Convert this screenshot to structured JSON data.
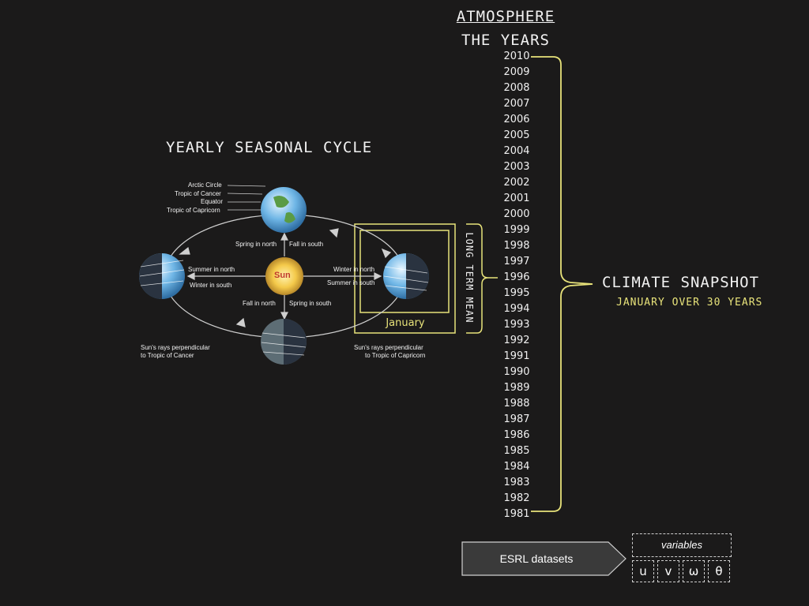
{
  "header": {
    "atmosphere": "ATMOSPHERE",
    "the_years": "THE YEARS"
  },
  "cycle": {
    "title": "YEARLY SEASONAL CYCLE",
    "labels": {
      "arctic_circle": "Arctic Circle",
      "tropic_cancer": "Tropic of Cancer",
      "equator": "Equator",
      "tropic_capricorn": "Tropic of Capricorn",
      "spring_north_top": "Spring in north",
      "fall_south_top": "Fall in south",
      "summer_north": "Summer in north",
      "winter_south": "Winter in south",
      "winter_north": "Winter in north",
      "summer_south": "Summer in south",
      "sun": "Sun",
      "fall_north_bottom": "Fall in north",
      "spring_south_bottom": "Spring in south",
      "rays_cancer_1": "Sun's rays perpendicular",
      "rays_cancer_2": "to Tropic of Cancer",
      "rays_capricorn_1": "Sun's rays perpendicular",
      "rays_capricorn_2": "to Tropic of Capricorn"
    },
    "january": "January",
    "long_term_mean": "LONG TERM MEAN"
  },
  "years": [
    "2010",
    "2009",
    "2008",
    "2007",
    "2006",
    "2005",
    "2004",
    "2003",
    "2002",
    "2001",
    "2000",
    "1999",
    "1998",
    "1997",
    "1996",
    "1995",
    "1994",
    "1993",
    "1992",
    "1991",
    "1990",
    "1989",
    "1988",
    "1987",
    "1986",
    "1985",
    "1984",
    "1983",
    "1982",
    "1981"
  ],
  "snapshot": {
    "title": "CLIMATE SNAPSHOT",
    "subtitle": "JANUARY OVER 30 YEARS"
  },
  "datasets": {
    "label": "ESRL datasets"
  },
  "variables": {
    "title": "variables",
    "items": [
      "u",
      "v",
      "ω",
      "θ"
    ]
  },
  "colors": {
    "background": "#1b1a1a",
    "accent_yellow": "#e8e37a",
    "box_gray": "#3a3a3a"
  }
}
